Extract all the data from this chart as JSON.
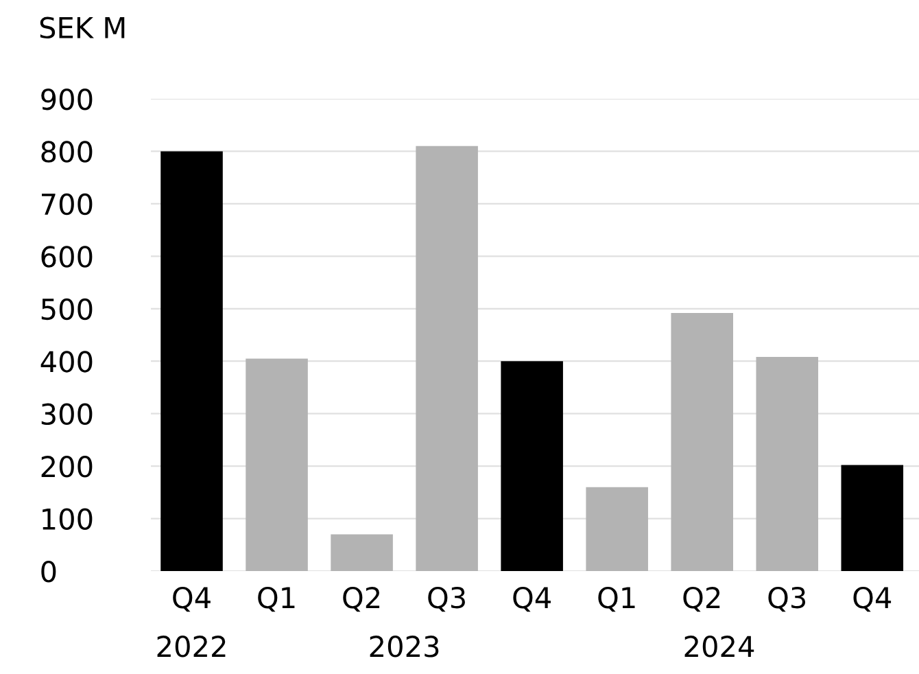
{
  "chart_data": {
    "type": "bar",
    "ylabel": "SEK M",
    "categories": [
      "Q4",
      "Q1",
      "Q2",
      "Q3",
      "Q4",
      "Q1",
      "Q2",
      "Q3",
      "Q4"
    ],
    "values": [
      800,
      405,
      70,
      810,
      400,
      160,
      492,
      408,
      202
    ],
    "colors": [
      "#000000",
      "#b3b3b3",
      "#b3b3b3",
      "#b3b3b3",
      "#000000",
      "#b3b3b3",
      "#b3b3b3",
      "#b3b3b3",
      "#000000"
    ],
    "ylim": [
      0,
      900
    ],
    "yticks": [
      0,
      100,
      200,
      300,
      400,
      500,
      600,
      700,
      800,
      900
    ],
    "grid": "y",
    "legend": false,
    "annotations": [
      "2022",
      "2023",
      "2024"
    ]
  }
}
